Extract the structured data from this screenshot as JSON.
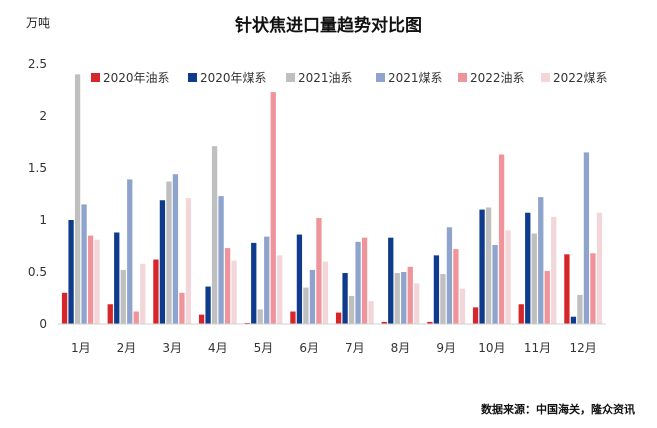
{
  "title": "针状焦进口量趋势对比图",
  "unit_label": "万吨",
  "source_note": "数据来源：中国海关，隆众资讯",
  "chart_data": {
    "type": "bar",
    "categories": [
      "1月",
      "2月",
      "3月",
      "4月",
      "5月",
      "6月",
      "7月",
      "8月",
      "9月",
      "10月",
      "11月",
      "12月"
    ],
    "ylim": [
      0,
      2.5
    ],
    "yticks": [
      "0",
      "0.5",
      "1",
      "1.5",
      "2",
      "2.5"
    ],
    "ytick_values": [
      0,
      0.5,
      1,
      1.5,
      2,
      2.5
    ],
    "legend_position": "top-right",
    "grid": false,
    "series": [
      {
        "name": "2020年油系",
        "color": "#d7262a",
        "values": [
          0.3,
          0.19,
          0.62,
          0.09,
          0.01,
          0.12,
          0.11,
          0.02,
          0.02,
          0.16,
          0.19,
          0.67
        ]
      },
      {
        "name": "2020年煤系",
        "color": "#0f3b8c",
        "values": [
          1.0,
          0.88,
          1.19,
          0.36,
          0.78,
          0.86,
          0.49,
          0.83,
          0.66,
          1.1,
          1.07,
          0.07
        ]
      },
      {
        "name": "2021油系",
        "color": "#bfbfbf",
        "values": [
          2.4,
          0.52,
          1.37,
          1.71,
          0.14,
          0.35,
          0.27,
          0.49,
          0.48,
          1.12,
          0.87,
          0.28
        ]
      },
      {
        "name": "2021煤系",
        "color": "#8ea4cc",
        "values": [
          1.15,
          1.39,
          1.44,
          1.23,
          0.84,
          0.52,
          0.79,
          0.5,
          0.93,
          0.76,
          1.22,
          1.65
        ]
      },
      {
        "name": "2022油系",
        "color": "#f0949b",
        "values": [
          0.85,
          0.12,
          0.3,
          0.73,
          2.23,
          1.02,
          0.83,
          0.55,
          0.72,
          1.63,
          0.51,
          0.68
        ]
      },
      {
        "name": "2022煤系",
        "color": "#f2d6da",
        "values": [
          0.81,
          0.58,
          1.21,
          0.61,
          0.66,
          0.6,
          0.22,
          0.39,
          0.34,
          0.9,
          1.03,
          1.07
        ]
      }
    ]
  }
}
